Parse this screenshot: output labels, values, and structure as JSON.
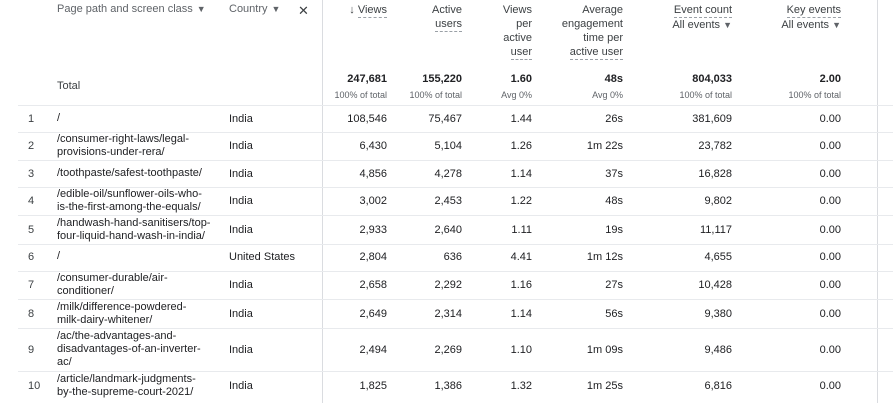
{
  "headers": {
    "page_path": "Page path and screen class",
    "country": "Country",
    "views": "Views",
    "active_users_l1": "Active",
    "active_users_l2": "users",
    "vpu_l1": "Views",
    "vpu_l2": "per",
    "vpu_l3": "active",
    "vpu_l4": "user",
    "avg_l1": "Average",
    "avg_l2": "engagement",
    "avg_l3": "time per",
    "avg_l4": "active user",
    "event_count": "Event count",
    "event_filter": "All events",
    "key_events": "Key events",
    "key_filter": "All events"
  },
  "totals": {
    "label": "Total",
    "views": "247,681",
    "views_sub": "100% of total",
    "active_users": "155,220",
    "active_users_sub": "100% of total",
    "vpu": "1.60",
    "vpu_sub": "Avg 0%",
    "avg_time": "48s",
    "avg_time_sub": "Avg 0%",
    "event_count": "804,033",
    "event_count_sub": "100% of total",
    "key_events": "2.00",
    "key_events_sub": "100% of total"
  },
  "rows": [
    {
      "n": "1",
      "path": [
        "/"
      ],
      "country": "India",
      "views": "108,546",
      "users": "75,467",
      "vpu": "1.44",
      "time": "26s",
      "events": "381,609",
      "key": "0.00"
    },
    {
      "n": "2",
      "path": [
        "/consumer-right-laws/legal-",
        "provisions-under-rera/"
      ],
      "country": "India",
      "views": "6,430",
      "users": "5,104",
      "vpu": "1.26",
      "time": "1m 22s",
      "events": "23,782",
      "key": "0.00"
    },
    {
      "n": "3",
      "path": [
        "/toothpaste/safest-toothpaste/"
      ],
      "country": "India",
      "views": "4,856",
      "users": "4,278",
      "vpu": "1.14",
      "time": "37s",
      "events": "16,828",
      "key": "0.00"
    },
    {
      "n": "4",
      "path": [
        "/edible-oil/sunflower-oils-who-",
        "is-the-first-among-the-equals/"
      ],
      "country": "India",
      "views": "3,002",
      "users": "2,453",
      "vpu": "1.22",
      "time": "48s",
      "events": "9,802",
      "key": "0.00"
    },
    {
      "n": "5",
      "path": [
        "/handwash-hand-sanitisers/top-",
        "four-liquid-hand-wash-in-india/"
      ],
      "country": "India",
      "views": "2,933",
      "users": "2,640",
      "vpu": "1.11",
      "time": "19s",
      "events": "11,117",
      "key": "0.00"
    },
    {
      "n": "6",
      "path": [
        "/"
      ],
      "country": "United States",
      "views": "2,804",
      "users": "636",
      "vpu": "4.41",
      "time": "1m 12s",
      "events": "4,655",
      "key": "0.00"
    },
    {
      "n": "7",
      "path": [
        "/consumer-durable/air-",
        "conditioner/"
      ],
      "country": "India",
      "views": "2,658",
      "users": "2,292",
      "vpu": "1.16",
      "time": "27s",
      "events": "10,428",
      "key": "0.00"
    },
    {
      "n": "8",
      "path": [
        "/milk/difference-powdered-",
        "milk-dairy-whitener/"
      ],
      "country": "India",
      "views": "2,649",
      "users": "2,314",
      "vpu": "1.14",
      "time": "56s",
      "events": "9,380",
      "key": "0.00"
    },
    {
      "n": "9",
      "path": [
        "/ac/the-advantages-and-",
        "disadvantages-of-an-inverter-",
        "ac/"
      ],
      "country": "India",
      "views": "2,494",
      "users": "2,269",
      "vpu": "1.10",
      "time": "1m 09s",
      "events": "9,486",
      "key": "0.00"
    },
    {
      "n": "10",
      "path": [
        "/article/landmark-judgments-",
        "by-the-supreme-court-2021/"
      ],
      "country": "India",
      "views": "1,825",
      "users": "1,386",
      "vpu": "1.32",
      "time": "1m 25s",
      "events": "6,816",
      "key": "0.00"
    }
  ]
}
